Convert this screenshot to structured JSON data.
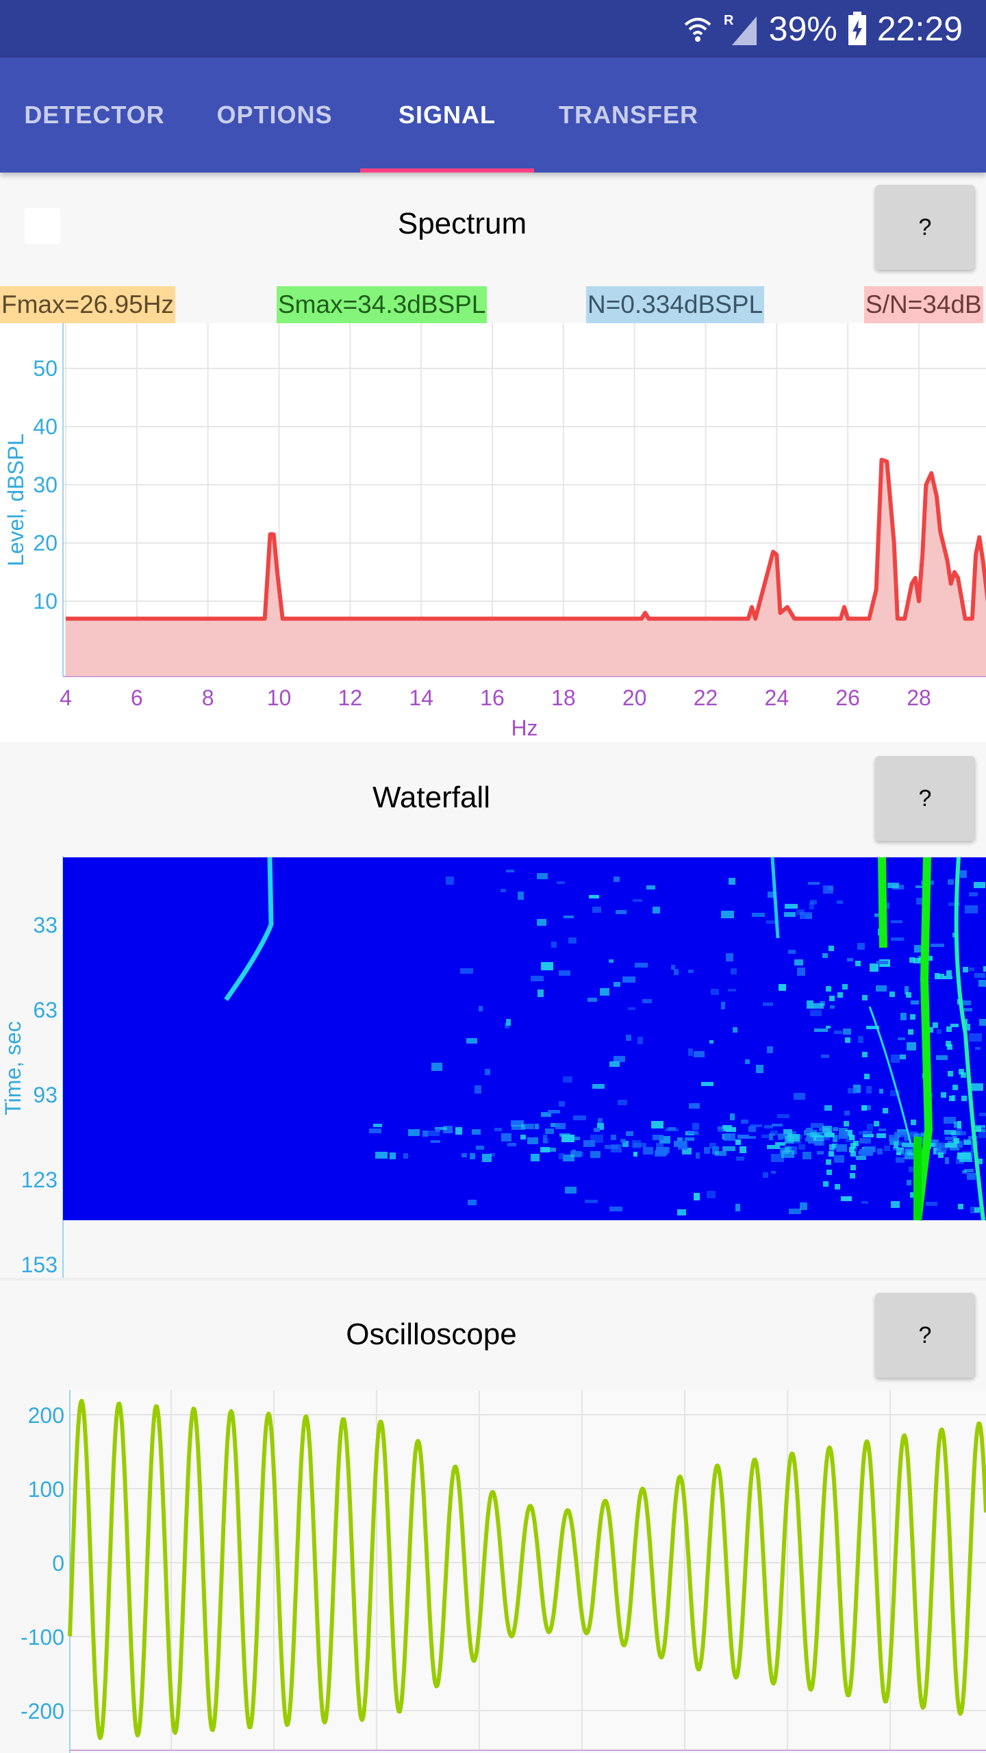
{
  "status_bar": {
    "battery_percent": "39%",
    "time": "22:29",
    "network_badge": "R",
    "icons": [
      "wifi-icon",
      "signal-icon",
      "battery-charging-icon"
    ]
  },
  "tabs": [
    {
      "label": "DETECTOR",
      "active": false
    },
    {
      "label": "OPTIONS",
      "active": false
    },
    {
      "label": "SIGNAL",
      "active": true
    },
    {
      "label": "TRANSFER",
      "active": false
    }
  ],
  "help_label": "?",
  "colors": {
    "header": "#3f51b5",
    "status_bar": "#2f3e97",
    "accent": "#ff4081",
    "spectrum_line": "#ee4444",
    "spectrum_fill": "#f6c6c6",
    "waterfall_bg": "#0000f0",
    "oscilloscope_line": "#99cc00",
    "y_axis_text": "#33aadd",
    "x_axis_text": "#a64dc8"
  },
  "spectrum": {
    "title": "Spectrum",
    "badges": {
      "fmax": "Fmax=26.95Hz",
      "smax": "Smax=34.3dBSPL",
      "noise": "N=0.334dBSPL",
      "snr": "S/N=34dB"
    },
    "chart_data": {
      "type": "area",
      "xlabel": "Hz",
      "ylabel": "Level, dBSPL",
      "xlim": [
        4,
        30
      ],
      "ylim": [
        7,
        57
      ],
      "x_ticks": [
        "4",
        "6",
        "8",
        "10",
        "12",
        "14",
        "16",
        "18",
        "20",
        "22",
        "24",
        "26",
        "28"
      ],
      "y_ticks": [
        "10",
        "20",
        "30",
        "40",
        "50"
      ],
      "grid": true,
      "series": [
        {
          "x": [
            4,
            9.6,
            9.75,
            9.85,
            9.95,
            10.1,
            20.2,
            20.3,
            20.4,
            23.2,
            23.3,
            23.4,
            23.9,
            24.0,
            24.1,
            24.3,
            24.5,
            25.8,
            25.9,
            26.0,
            26.6,
            26.8,
            26.95,
            27.1,
            27.3,
            27.4,
            27.6,
            27.8,
            27.9,
            28.0,
            28.1,
            28.2,
            28.35,
            28.5,
            28.6,
            28.8,
            28.9,
            29.0,
            29.1,
            29.3,
            29.5,
            29.6,
            29.7,
            29.8,
            30.0
          ],
          "y": [
            7,
            7,
            21.5,
            21.5,
            15,
            7,
            7,
            8,
            7,
            7,
            9,
            7,
            18.5,
            18,
            8,
            9,
            7,
            7,
            9,
            7,
            7,
            12,
            34.3,
            34,
            20,
            7,
            7,
            13,
            14,
            10,
            18,
            30,
            32,
            28,
            22,
            17,
            13,
            15,
            14,
            7,
            7,
            18,
            21,
            17,
            7
          ]
        }
      ]
    }
  },
  "waterfall": {
    "title": "Waterfall",
    "chart_data": {
      "type": "heatmap",
      "ylabel": "Time, sec",
      "y_ticks": [
        "33",
        "63",
        "93",
        "123",
        "153"
      ],
      "xlim": [
        4,
        30
      ]
    }
  },
  "oscilloscope": {
    "title": "Oscilloscope",
    "chart_data": {
      "type": "line",
      "y_ticks": [
        "200",
        "100",
        "0",
        "-100",
        "-200"
      ],
      "ylim": [
        -250,
        230
      ],
      "grid": true,
      "samples": 1000,
      "cycles": 24.5,
      "amplitude_envelope": [
        [
          0,
          230
        ],
        [
          0.35,
          200
        ],
        [
          0.48,
          90
        ],
        [
          0.55,
          80
        ],
        [
          0.7,
          140
        ],
        [
          1.0,
          200
        ]
      ]
    }
  }
}
